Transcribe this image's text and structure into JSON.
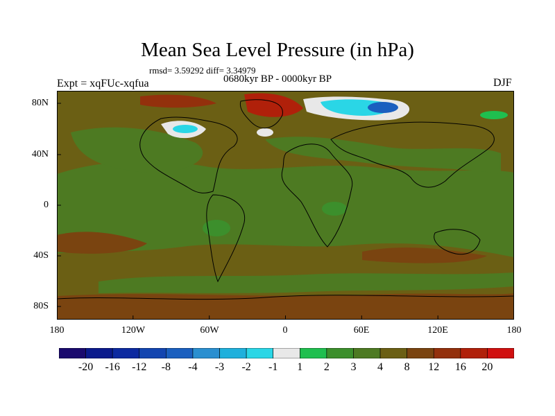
{
  "title": "Mean Sea Level Pressure (in hPa)",
  "stats": "rmsd= 3.59292 diff= 3.34979",
  "period": "0680kyr BP - 0000kyr BP",
  "experiment": "Expt = xqFUc-xqfua",
  "season": "DJF",
  "y_axis_labels": [
    "80N",
    "40N",
    "0",
    "40S",
    "80S"
  ],
  "x_axis_labels": [
    "180",
    "120W",
    "60W",
    "0",
    "60E",
    "120E",
    "180"
  ],
  "colorbar": {
    "labels": [
      "-20",
      "-16",
      "-12",
      "-8",
      "-4",
      "-3",
      "-2",
      "-1",
      "1",
      "2",
      "3",
      "4",
      "8",
      "12",
      "16",
      "20"
    ],
    "colors": [
      "#1a0a6e",
      "#0b1a8c",
      "#0d2aa0",
      "#1345b0",
      "#1a5fbf",
      "#2a8fd0",
      "#1fb0dc",
      "#2ad6e6",
      "#e8e8e8",
      "#1fbf4f",
      "#3c8f2c",
      "#4d7a22",
      "#6b5f14",
      "#7a4410",
      "#93300c",
      "#b0200a",
      "#d01010"
    ]
  },
  "field_colors": {
    "background": "#6b5f14",
    "green": "#4d7a22",
    "lightgreen": "#3c8f2c",
    "brightgreen": "#1fbf4f",
    "brown": "#7a4410",
    "red": "#b0200a",
    "white": "#e8e8e8",
    "cyan": "#2ad6e6",
    "blue": "#1a5fbf"
  }
}
